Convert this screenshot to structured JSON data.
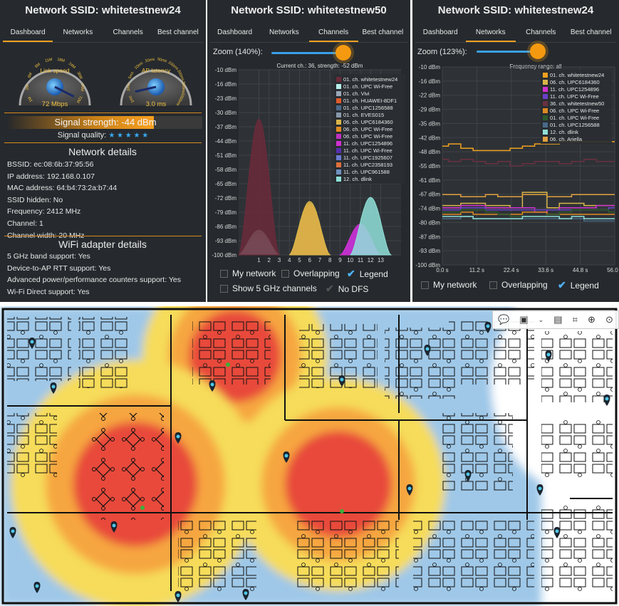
{
  "panels": [
    {
      "title": "Network SSID: whitetestnew24",
      "tabs": [
        "Dashboard",
        "Networks",
        "Channels",
        "Best channel"
      ],
      "active_tab": 0,
      "gauges": [
        {
          "label": "Link speed",
          "value": "72 Mbps",
          "ticks": [
            "1M",
            "2M",
            "6M",
            "9M",
            "11M",
            "18M",
            "24M",
            "36M",
            "54M",
            "72M"
          ],
          "pointer_fraction": 1.0
        },
        {
          "label": "AP latency",
          "value": "3.0 ms",
          "ticks": [
            "1ms",
            "2ms",
            "5ms",
            "10ms",
            "20ms",
            "50ms",
            "100ms",
            "200ms",
            "500ms",
            "1000ms"
          ],
          "pointer_fraction": 0.06
        }
      ],
      "signal_strength": "Signal strength: -44 dBm",
      "signal_strength_fraction": 0.75,
      "signal_quality_label": "Signal quality:",
      "signal_quality_stars": "★ ★ ★ ★ ★",
      "network_details_title": "Network details",
      "network_details": [
        "BSSID: ec:08:6b:37:95:56",
        "IP address: 192.168.0.107",
        "MAC address: 64:b4:73:2a:b7:44",
        "SSID hidden: No",
        "Frequency: 2412 MHz",
        "Channel: 1",
        "Channel width: 20 MHz"
      ],
      "adapter_title": "WiFi adapter details",
      "adapter_details": [
        "5 GHz band support: Yes",
        "Device-to-AP RTT support: Yes",
        "Advanced power/performance counters support: Yes",
        "Wi-Fi Direct support: Yes"
      ]
    },
    {
      "title": "Network SSID: whitetestnew50",
      "tabs": [
        "Dashboard",
        "Networks",
        "Channels",
        "Best channel"
      ],
      "active_tab": 2,
      "zoom_label": "Zoom (140%):",
      "zoom_fraction": 0.9,
      "chart_header": "Current ch.: 36, strength: -52 dBm",
      "checkboxes": [
        {
          "label": "My network",
          "checked": false
        },
        {
          "label": "Overlapping",
          "checked": false
        },
        {
          "label": "Legend",
          "checked": true
        },
        {
          "label": "Show 5 GHz channels",
          "checked": false
        },
        {
          "label": "No DFS",
          "checked": true
        }
      ]
    },
    {
      "title": "Network SSID: whitetestnew24",
      "tabs": [
        "Dashboard",
        "Networks",
        "Channels",
        "Best channel"
      ],
      "active_tab": 1,
      "zoom_label": "Zoom (123%):",
      "zoom_fraction": 0.9,
      "chart_header": "Frequency range: all",
      "checkboxes": [
        {
          "label": "My network",
          "checked": false
        },
        {
          "label": "Overlapping",
          "checked": false
        },
        {
          "label": "Legend",
          "checked": true
        }
      ]
    }
  ],
  "chart_data": [
    {
      "type": "area",
      "title": "Current ch.: 36, strength: -52 dBm",
      "xlabel": "",
      "ylabel": "",
      "x_ticks": [
        "1",
        "2",
        "3",
        "4",
        "5",
        "6",
        "7",
        "8",
        "9",
        "10",
        "11",
        "12",
        "13"
      ],
      "y_ticks": [
        "-10 dBm",
        "-16 dBm",
        "-23 dBm",
        "-30 dBm",
        "-37 dBm",
        "-44 dBm",
        "-51 dBm",
        "-58 dBm",
        "-65 dBm",
        "-72 dBm",
        "-79 dBm",
        "-86 dBm",
        "-93 dBm",
        "-100 dBm"
      ],
      "xlim": [
        -1,
        15
      ],
      "ylim": [
        -100,
        -10
      ],
      "legend_position": "top-right",
      "series": [
        {
          "name": "01. ch. whitetestnew24",
          "channel": 1,
          "dbm": -34,
          "color": "#6a2a3a"
        },
        {
          "name": "01. ch. UPC Wi-Free",
          "channel": 1,
          "dbm": -88,
          "color": "#b8f0ea"
        },
        {
          "name": "01. ch. Vivi",
          "channel": 1,
          "dbm": -90,
          "color": "#9aa8b8"
        },
        {
          "name": "01. ch. HUAWEI-8DF1",
          "channel": 1,
          "dbm": -91,
          "color": "#e05a2a"
        },
        {
          "name": "01. ch. UPC1256588",
          "channel": 1,
          "dbm": -92,
          "color": "#4a6a8a"
        },
        {
          "name": "01. ch. EVES015",
          "channel": 1,
          "dbm": -93,
          "color": "#8899aa"
        },
        {
          "name": "06. ch. UPC6184360",
          "channel": 6,
          "dbm": -74,
          "color": "#d9b64a"
        },
        {
          "name": "06. ch. UPC Wi-Free",
          "channel": 6,
          "dbm": -75,
          "color": "#e08a20"
        },
        {
          "name": "06. ch. UPC Wi-Free",
          "channel": 6,
          "dbm": -76,
          "color": "#c030c0"
        },
        {
          "name": "11. ch. UPC1254896",
          "channel": 11,
          "dbm": -85,
          "color": "#d030d0"
        },
        {
          "name": "11. ch. UPC Wi-Free",
          "channel": 11,
          "dbm": -86,
          "color": "#5530b0"
        },
        {
          "name": "11. ch. UPC1925607",
          "channel": 11,
          "dbm": -88,
          "color": "#6c7cd0"
        },
        {
          "name": "11. ch. UPC2358193",
          "channel": 11,
          "dbm": -89,
          "color": "#e0703a"
        },
        {
          "name": "11. ch. UPC961588",
          "channel": 11,
          "dbm": -90,
          "color": "#7090c0"
        },
        {
          "name": "12. ch. dlink",
          "channel": 12,
          "dbm": -72,
          "color": "#8fe0d8"
        }
      ]
    },
    {
      "type": "line",
      "title": "Frequency range: all",
      "xlabel": "",
      "ylabel": "",
      "x_ticks": [
        "0.0 s",
        "11.2 s",
        "22.4 s",
        "33.6 s",
        "44.8 s",
        "56.0 s"
      ],
      "y_ticks": [
        "-10 dBm",
        "-16 dBm",
        "-22 dBm",
        "-29 dBm",
        "-35 dBm",
        "-42 dBm",
        "-48 dBm",
        "-55 dBm",
        "-61 dBm",
        "-67 dBm",
        "-74 dBm",
        "-80 dBm",
        "-87 dBm",
        "-93 dBm",
        "-100 dBm"
      ],
      "xlim": [
        0,
        56
      ],
      "ylim": [
        -100,
        -10
      ],
      "legend_position": "top-right",
      "series": [
        {
          "name": "01. ch. whitetestnew24",
          "color": "#f0a020",
          "x": [
            0,
            4,
            8,
            12,
            16,
            20,
            24,
            28,
            32,
            36,
            40,
            44,
            48,
            52,
            56
          ],
          "y": [
            -46,
            -45,
            -47,
            -48,
            -48,
            -48,
            -47,
            -46,
            -45,
            -45,
            -44,
            -44,
            -44,
            -44,
            -44
          ]
        },
        {
          "name": "06. ch. UPC6184360",
          "color": "#d9b64a",
          "x": [
            0,
            4,
            8,
            12,
            16,
            20,
            24,
            28,
            32,
            36,
            40,
            44,
            48,
            52,
            56
          ],
          "y": [
            -73,
            -73,
            -72,
            -72,
            -73,
            -73,
            -74,
            -67,
            -67,
            -74,
            -72,
            -72,
            -73,
            -73,
            -73
          ]
        },
        {
          "name": "11. ch. UPC1254896",
          "color": "#d030d0",
          "x": [
            0,
            4,
            8,
            12,
            16,
            20,
            24,
            28,
            32,
            36,
            40,
            44,
            48,
            52,
            56
          ],
          "y": [
            -74,
            -74,
            -73,
            -73,
            -74,
            -74,
            -74,
            -74,
            -76,
            -75,
            -74,
            -74,
            -74,
            -73,
            -73
          ]
        },
        {
          "name": "11. ch. UPC Wi-Free",
          "color": "#6a40c8",
          "x": [
            0,
            4,
            8,
            12,
            16,
            20,
            24,
            28,
            32,
            36,
            40,
            44,
            48,
            52,
            56
          ],
          "y": [
            -75,
            -75,
            -74,
            -74,
            -75,
            -75,
            -75,
            -75,
            -75,
            -75,
            -75,
            -75,
            -75,
            -75,
            -74
          ]
        },
        {
          "name": "36. ch. whitetestnew50",
          "color": "#6a3040",
          "x": [
            0,
            4,
            8,
            12,
            16,
            20,
            24,
            28,
            32,
            36,
            40,
            44,
            48,
            52,
            56
          ],
          "y": [
            -52,
            -53,
            -52,
            -53,
            -54,
            -53,
            -55,
            -54,
            -53,
            -53,
            -54,
            -53,
            -52,
            -53,
            -53
          ]
        },
        {
          "name": "06. ch. UPC Wi-Free",
          "color": "#e08a20",
          "x": [
            0,
            4,
            8,
            12,
            16,
            20,
            24,
            28,
            32,
            36,
            40,
            44,
            48,
            52,
            56
          ],
          "y": [
            -77,
            -77,
            -76,
            -77,
            -77,
            -77,
            -77,
            -76,
            -76,
            -77,
            -77,
            -77,
            -77,
            -77,
            -77
          ]
        },
        {
          "name": "01. ch. UPC Wi-Free",
          "color": "#2e5a2e",
          "x": [
            0,
            4,
            8,
            12,
            16,
            20,
            24,
            28,
            32,
            36,
            40,
            44,
            48,
            52,
            56
          ],
          "y": [
            -76,
            -76,
            -75,
            -75,
            -76,
            -77,
            -78,
            -78,
            -78,
            -77,
            -76,
            -75,
            -75,
            -75,
            -76
          ]
        },
        {
          "name": "01. ch. UPC1256588",
          "color": "#4a6a8a",
          "x": [
            0,
            4,
            8,
            12,
            16,
            20,
            24,
            28,
            32,
            36,
            40,
            44,
            48,
            52,
            56
          ],
          "y": [
            -79,
            -79,
            -78,
            -79,
            -79,
            -79,
            -79,
            -79,
            -79,
            -79,
            -79,
            -79,
            -80,
            -80,
            -80
          ]
        },
        {
          "name": "12. ch. dlink",
          "color": "#8fe0d8",
          "x": [
            0,
            4,
            8,
            12,
            16,
            20,
            24,
            28,
            32,
            36,
            40,
            44,
            48,
            52,
            56
          ],
          "y": [
            -78,
            -78,
            -78,
            -79,
            -79,
            -79,
            -79,
            -78,
            -78,
            -78,
            -79,
            -78,
            -79,
            -79,
            -79
          ]
        },
        {
          "name": "06. ch. Ariella",
          "color": "#e0a040",
          "x": [
            0,
            4,
            8,
            12,
            16,
            20,
            24,
            28,
            32,
            36,
            40,
            44,
            48,
            52,
            56
          ],
          "y": [
            -68,
            -68,
            -69,
            -69,
            -68,
            -69,
            -69,
            -68,
            -68,
            -69,
            -69,
            -68,
            -68,
            -68,
            -68
          ]
        }
      ]
    }
  ],
  "heatmap": {
    "colors": {
      "strong": "#e84a3a",
      "medium": "#f6a640",
      "weak": "#f6dc5a",
      "low": "#9fc8e8",
      "background": "#ffffff"
    },
    "toolbar_icons": [
      "comment-icon",
      "select-icon",
      "chevron-down-icon",
      "save-icon",
      "crop-icon",
      "zoom-in-icon",
      "download-icon"
    ]
  }
}
